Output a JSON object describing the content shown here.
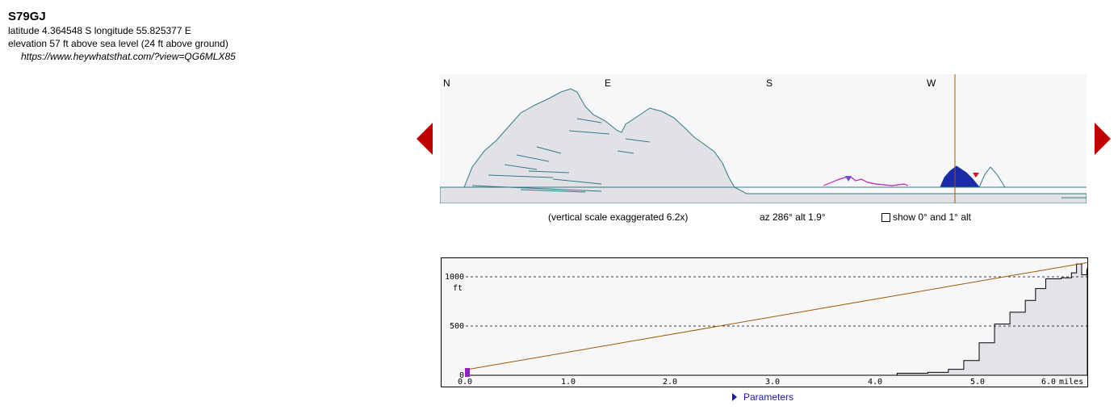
{
  "site": {
    "name": "S79GJ",
    "coordinates": "latitude 4.364548 S longitude 55.825377 E",
    "elevation": "elevation 57 ft above sea level (24 ft above ground)",
    "link": "https://www.heywhatsthat.com/?view=QG6MLX85"
  },
  "panorama": {
    "compass": [
      "N",
      "E",
      "S",
      "W"
    ],
    "scale_note": "(vertical scale exaggerated 6.2x)",
    "readout": "az 286° alt 1.9°",
    "alt_toggle_label": "show 0° and 1° alt",
    "cursor_azimuth_deg": 286
  },
  "profile": {
    "y_ticks": [
      "1000",
      "500",
      "0"
    ],
    "y_unit": "ft",
    "x_ticks": [
      "0.0",
      "1.0",
      "2.0",
      "3.0",
      "4.0",
      "5.0",
      "6.0"
    ],
    "x_unit": "miles",
    "observer_elev_ft": 57,
    "terrain": [
      [
        4.2,
        20
      ],
      [
        4.5,
        30
      ],
      [
        4.7,
        60
      ],
      [
        4.85,
        150
      ],
      [
        5.0,
        330
      ],
      [
        5.15,
        520
      ],
      [
        5.3,
        640
      ],
      [
        5.45,
        760
      ],
      [
        5.55,
        880
      ],
      [
        5.65,
        980
      ],
      [
        5.8,
        990
      ],
      [
        5.9,
        1040
      ],
      [
        5.95,
        1130
      ],
      [
        6.0,
        1020
      ],
      [
        6.05,
        1070
      ],
      [
        6.1,
        1130
      ],
      [
        6.15,
        1090
      ]
    ]
  },
  "params_toggle_label": "Parameters",
  "colors": {
    "accent": "#c00000",
    "link": "#1a1aa0",
    "terrain_fill": "#e4e4e8",
    "sightline": "#a05a00"
  }
}
